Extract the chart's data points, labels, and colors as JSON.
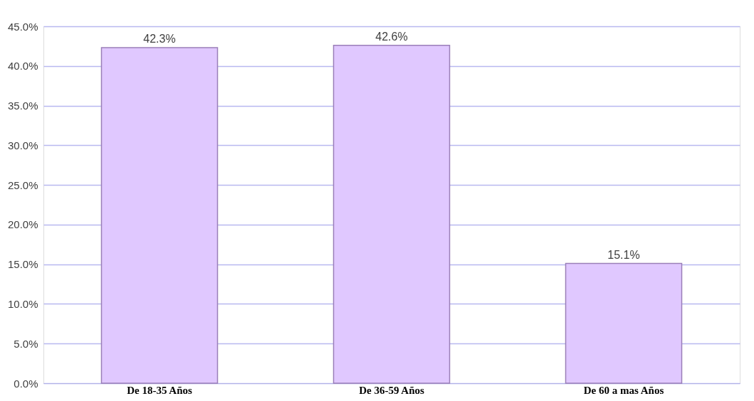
{
  "chart_data": {
    "type": "bar",
    "categories": [
      "De 18-35 Años",
      "De 36-59 Años",
      "De 60 a mas Años"
    ],
    "values": [
      42.3,
      42.6,
      15.1
    ],
    "value_labels": [
      "42.3%",
      "42.6%",
      "15.1%"
    ],
    "color": "#e0c8ff",
    "ylim": [
      0,
      45
    ],
    "yticks": [
      {
        "value": 0,
        "label": "0.0%"
      },
      {
        "value": 5,
        "label": "5.0%"
      },
      {
        "value": 10,
        "label": "10.0%"
      },
      {
        "value": 15,
        "label": "15.0%"
      },
      {
        "value": 20,
        "label": "20.0%"
      },
      {
        "value": 25,
        "label": "25.0%"
      },
      {
        "value": 30,
        "label": "30.0%"
      },
      {
        "value": 35,
        "label": "35.0%"
      },
      {
        "value": 40,
        "label": "40.0%"
      },
      {
        "value": 45,
        "label": "45.0%"
      }
    ],
    "grid": "y"
  }
}
